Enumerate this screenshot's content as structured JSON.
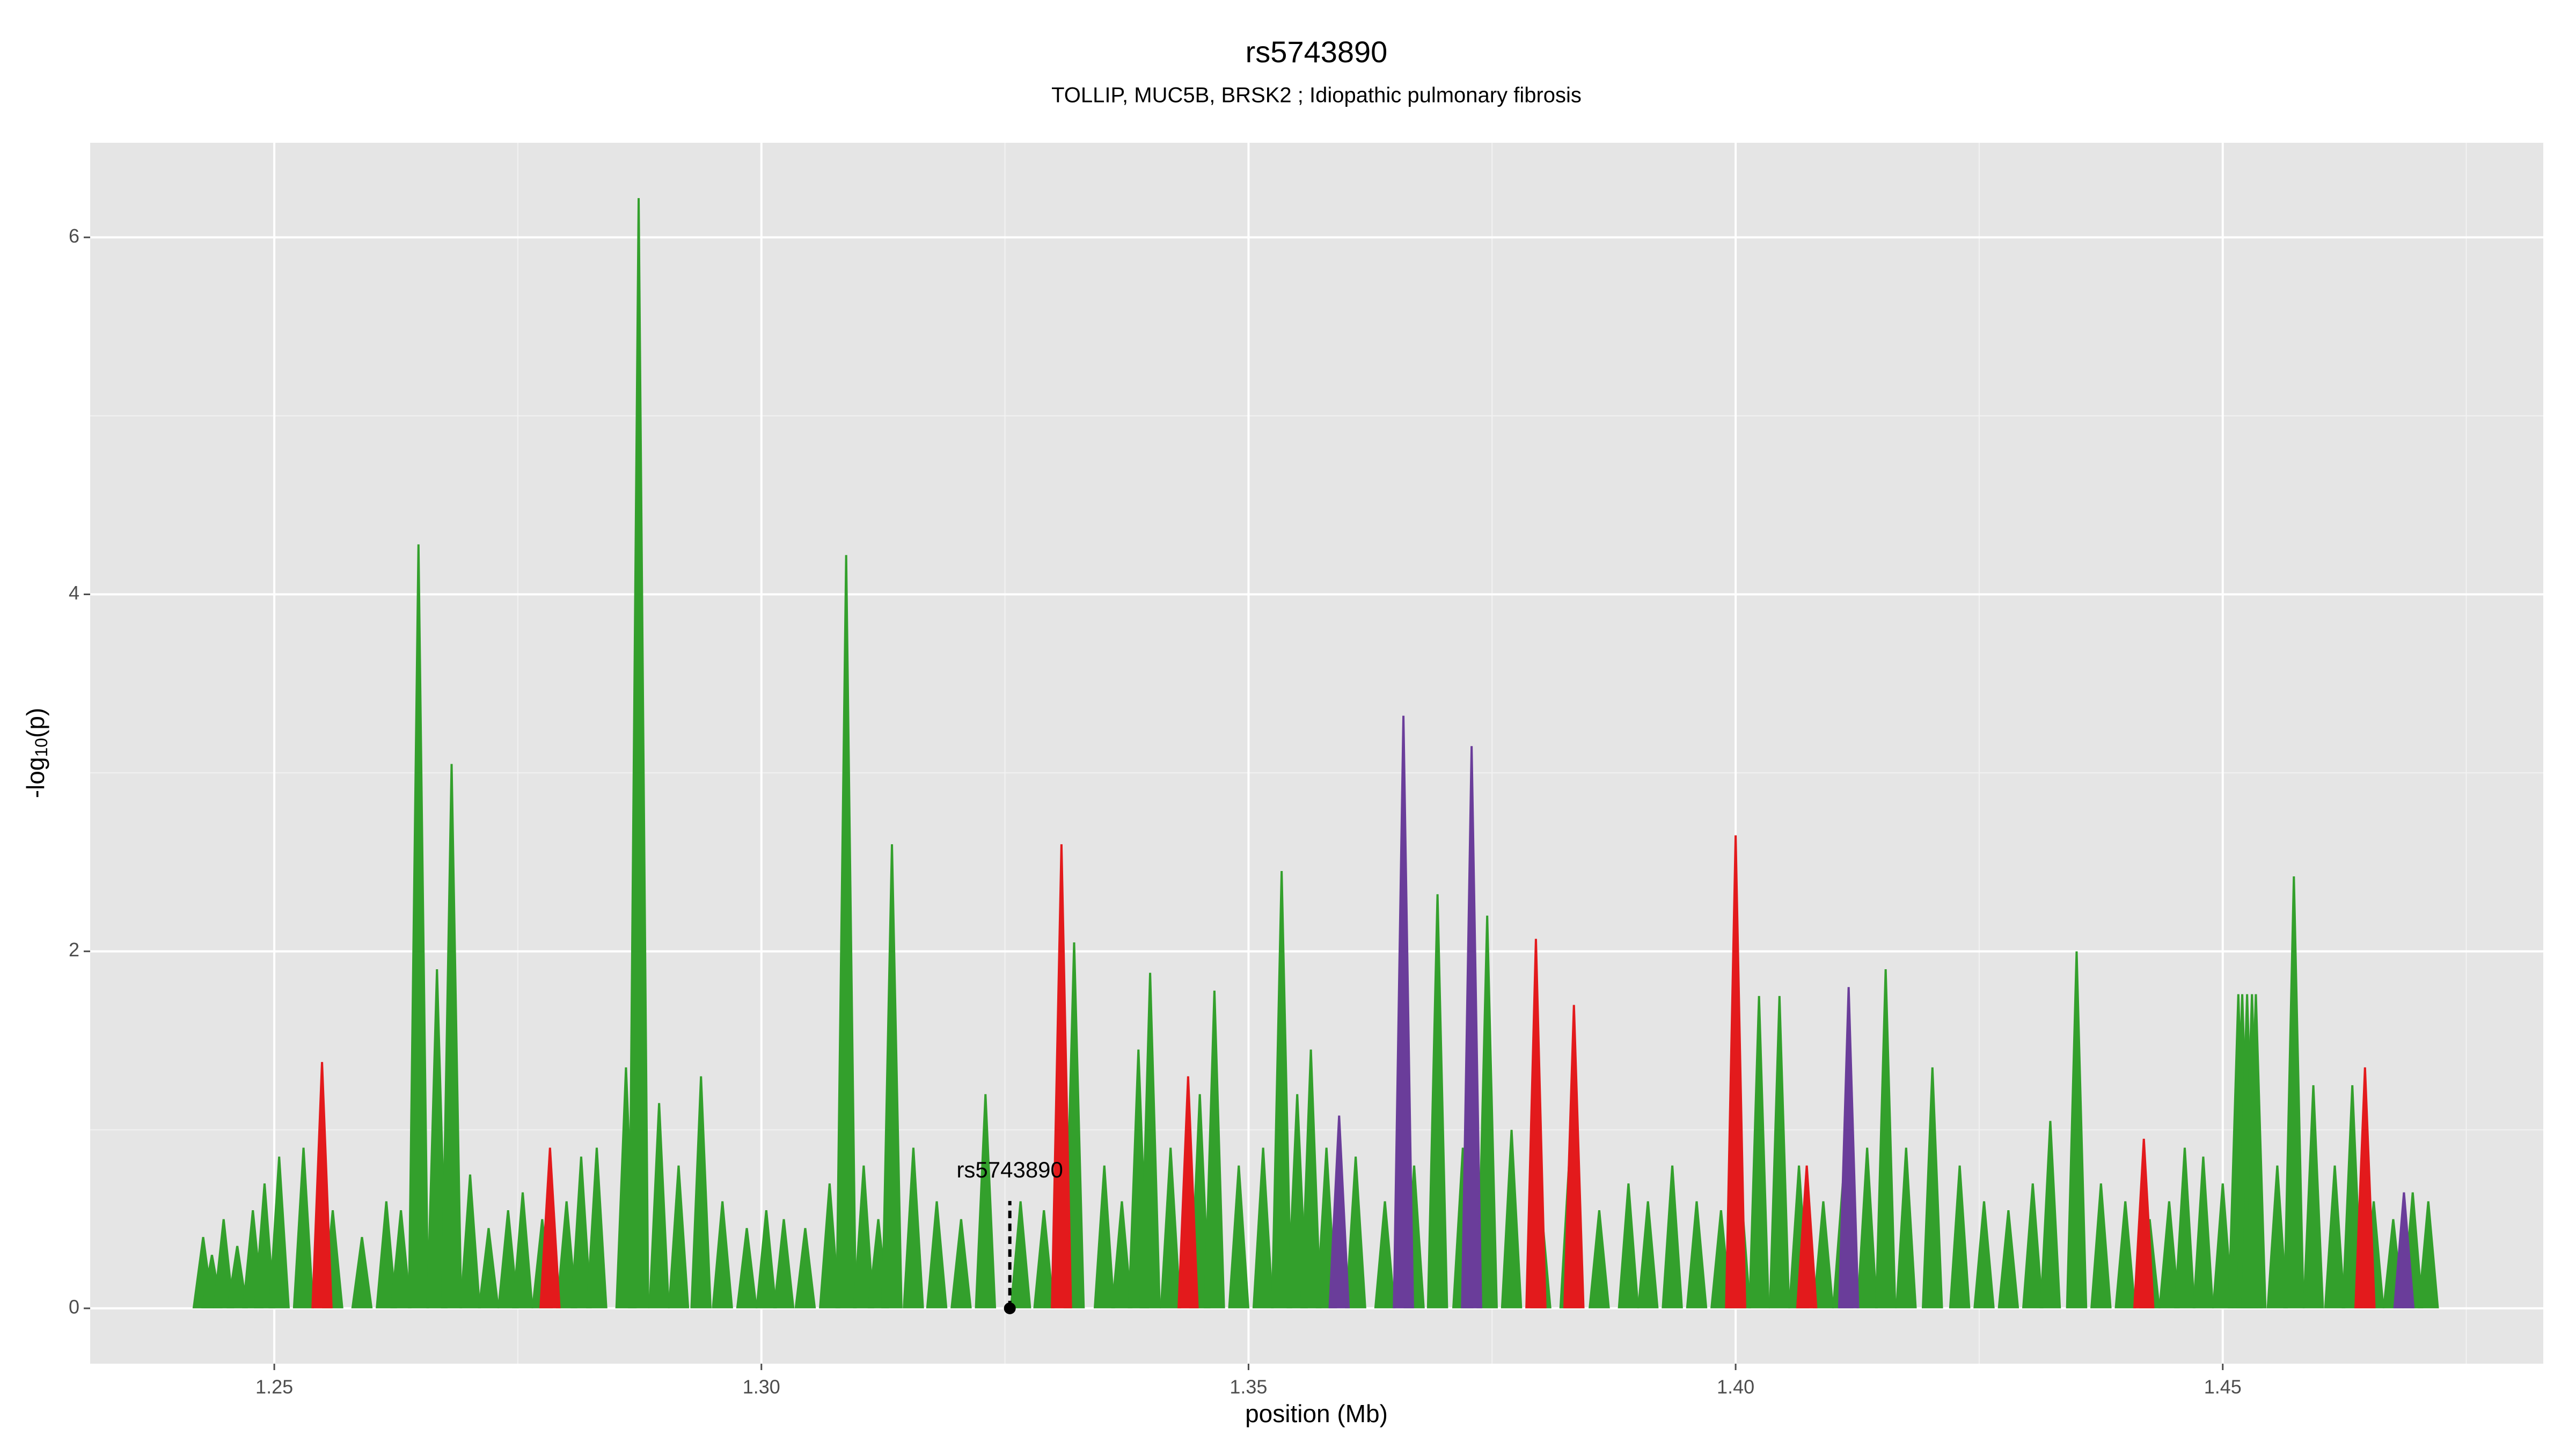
{
  "chart_data": {
    "type": "area",
    "title": "rs5743890",
    "subtitle": "TOLLIP, MUC5B, BRSK2 ; Idiopathic pulmonary fibrosis",
    "x_label": "position (Mb)",
    "y_label": [
      "-log",
      "10",
      "(p)"
    ],
    "xlim": [
      1.2311,
      1.4829
    ],
    "ylim": [
      -0.31,
      6.53
    ],
    "xticks": [
      {
        "value": 1.25,
        "label": "1.25"
      },
      {
        "value": 1.3,
        "label": "1.30"
      },
      {
        "value": 1.35,
        "label": "1.35"
      },
      {
        "value": 1.4,
        "label": "1.40"
      },
      {
        "value": 1.45,
        "label": "1.45"
      }
    ],
    "yticks": [
      0,
      2,
      4,
      6
    ],
    "x_minor_ticks": [
      1.275,
      1.325,
      1.375,
      1.425,
      1.475
    ],
    "y_minor_ticks": [
      1,
      3,
      5
    ],
    "grid": true,
    "series": [
      {
        "color": "#33a02c",
        "x": [
          1.2427,
          1.2436,
          1.2448,
          1.2462,
          1.2478,
          1.249,
          1.2505,
          1.253,
          1.256,
          1.259,
          1.2615,
          1.263,
          1.2648,
          1.2667,
          1.2682,
          1.2701,
          1.272,
          1.274,
          1.2755,
          1.2775,
          1.28,
          1.2815,
          1.2831,
          1.2861,
          1.2874,
          1.2895,
          1.2915,
          1.2938,
          1.296,
          1.2985,
          1.3005,
          1.3023,
          1.3045,
          1.307,
          1.3087,
          1.3105,
          1.312,
          1.3134,
          1.3156,
          1.318,
          1.3205,
          1.323,
          1.3266,
          1.329,
          1.3321,
          1.3352,
          1.337,
          1.3387,
          1.3399,
          1.342,
          1.345,
          1.3465,
          1.349,
          1.3515,
          1.3534,
          1.355,
          1.3564,
          1.358,
          1.361,
          1.364,
          1.367,
          1.3694,
          1.372,
          1.3745,
          1.377,
          1.38,
          1.383,
          1.386,
          1.389,
          1.391,
          1.3935,
          1.396,
          1.3985,
          1.4005,
          1.4024,
          1.4045,
          1.4065,
          1.409,
          1.411,
          1.4135,
          1.4154,
          1.4175,
          1.4202,
          1.423,
          1.4255,
          1.428,
          1.4305,
          1.4323,
          1.435,
          1.4375,
          1.44,
          1.4425,
          1.4445,
          1.4461,
          1.448,
          1.45,
          1.4516,
          1.452,
          1.4525,
          1.453,
          1.4534,
          1.4556,
          1.4573,
          1.4593,
          1.4615,
          1.4633,
          1.4655,
          1.4675,
          1.4695,
          1.4711
        ],
        "values": [
          0.4,
          0.3,
          0.5,
          0.35,
          0.55,
          0.7,
          0.85,
          0.9,
          0.55,
          0.4,
          0.6,
          0.55,
          4.28,
          1.9,
          3.05,
          0.75,
          0.45,
          0.55,
          0.65,
          0.5,
          0.6,
          0.85,
          0.9,
          1.35,
          6.22,
          1.15,
          0.8,
          1.3,
          0.6,
          0.45,
          0.55,
          0.5,
          0.45,
          0.7,
          4.22,
          0.8,
          0.5,
          2.6,
          0.9,
          0.6,
          0.5,
          1.2,
          0.6,
          0.55,
          2.05,
          0.8,
          0.6,
          1.45,
          1.88,
          0.9,
          1.2,
          1.78,
          0.8,
          0.9,
          2.45,
          1.2,
          1.45,
          0.9,
          0.85,
          0.6,
          0.8,
          2.32,
          0.9,
          2.2,
          1.0,
          0.6,
          0.9,
          0.55,
          0.7,
          0.6,
          0.8,
          0.6,
          0.55,
          0.7,
          1.75,
          1.75,
          0.8,
          0.6,
          0.7,
          0.9,
          1.9,
          0.9,
          1.35,
          0.8,
          0.6,
          0.55,
          0.7,
          1.05,
          2.0,
          0.7,
          0.6,
          0.5,
          0.6,
          0.9,
          0.85,
          0.7,
          1.76,
          1.76,
          1.76,
          1.76,
          1.76,
          0.8,
          2.42,
          1.25,
          0.8,
          1.25,
          0.6,
          0.5,
          0.65,
          0.6
        ]
      },
      {
        "color": "#e31a1c",
        "x": [
          1.2549,
          1.2783,
          1.3308,
          1.3438,
          1.3795,
          1.3834,
          1.4,
          1.4073,
          1.4419,
          1.4646
        ],
        "values": [
          1.38,
          0.9,
          2.6,
          1.3,
          2.07,
          1.7,
          2.65,
          0.8,
          0.95,
          1.35
        ]
      },
      {
        "color": "#6a3d9a",
        "x": [
          1.3593,
          1.3659,
          1.3729,
          1.4116,
          1.4686
        ],
        "values": [
          1.08,
          3.32,
          3.15,
          1.8,
          0.65
        ]
      }
    ],
    "annotation": {
      "text": "rs5743890",
      "x": 1.3255,
      "y": 0
    }
  }
}
